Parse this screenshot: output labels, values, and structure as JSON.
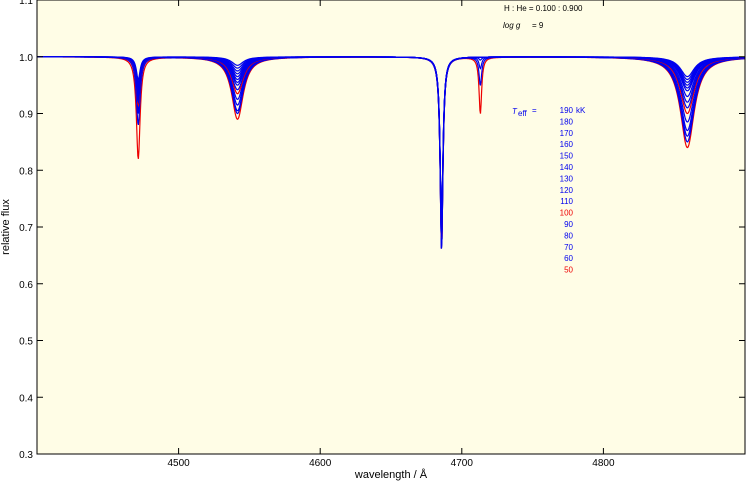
{
  "chart_data": {
    "type": "line",
    "xlabel": "wavelength / Å",
    "ylabel": "relative flux",
    "xlim": [
      4400,
      4900
    ],
    "ylim": [
      0.3,
      1.1
    ],
    "xticks": [
      4500,
      4600,
      4700,
      4800
    ],
    "yticks": [
      0.3,
      0.4,
      0.5,
      0.6,
      0.7,
      0.8,
      0.9,
      1.0,
      1.1
    ],
    "grid": false,
    "background": "#fffde6",
    "annotations": {
      "composition": "H : He = 0.100 : 0.900",
      "gravity_label": "log g",
      "gravity_value": "= 9"
    },
    "legend": {
      "placement": "right",
      "symbol_main": "T",
      "symbol_sub": "eff",
      "equals": "=",
      "unit": "kK"
    },
    "lines": [
      {
        "center": 4471.5,
        "width": 1.6
      },
      {
        "center": 4541.6,
        "width": 5.0
      },
      {
        "center": 4685.7,
        "width": 1.2
      },
      {
        "center": 4713.1,
        "width": 1.1
      },
      {
        "center": 4859.3,
        "width": 6.0
      }
    ],
    "series": [
      {
        "name": "190",
        "color": "#0000ee",
        "depths": [
          0.04,
          0.015,
          0.32,
          0.0,
          0.035
        ]
      },
      {
        "name": "180",
        "color": "#0000ee",
        "depths": [
          0.045,
          0.02,
          0.31,
          0.0,
          0.04
        ]
      },
      {
        "name": "170",
        "color": "#0000ee",
        "depths": [
          0.05,
          0.025,
          0.3,
          0.0,
          0.045
        ]
      },
      {
        "name": "160",
        "color": "#0000ee",
        "depths": [
          0.055,
          0.03,
          0.3,
          0.0,
          0.05
        ]
      },
      {
        "name": "150",
        "color": "#0000ee",
        "depths": [
          0.06,
          0.035,
          0.3,
          0.0,
          0.055
        ]
      },
      {
        "name": "140",
        "color": "#0000ee",
        "depths": [
          0.065,
          0.04,
          0.3,
          0.0,
          0.06
        ]
      },
      {
        "name": "130",
        "color": "#0000ee",
        "depths": [
          0.07,
          0.045,
          0.3,
          0.0,
          0.07
        ]
      },
      {
        "name": "120",
        "color": "#0000ee",
        "depths": [
          0.075,
          0.05,
          0.31,
          0.0,
          0.08
        ]
      },
      {
        "name": "110",
        "color": "#0000ee",
        "depths": [
          0.08,
          0.058,
          0.31,
          0.0,
          0.09
        ]
      },
      {
        "name": "100",
        "color": "#ee0000",
        "depths": [
          0.085,
          0.065,
          0.32,
          0.0,
          0.1
        ]
      },
      {
        "name": "90",
        "color": "#0000ee",
        "depths": [
          0.09,
          0.075,
          0.33,
          0.0,
          0.115
        ]
      },
      {
        "name": "80",
        "color": "#0000ee",
        "depths": [
          0.095,
          0.085,
          0.34,
          0.005,
          0.13
        ]
      },
      {
        "name": "70",
        "color": "#0000ee",
        "depths": [
          0.1,
          0.095,
          0.34,
          0.02,
          0.14
        ]
      },
      {
        "name": "60",
        "color": "#0000ee",
        "depths": [
          0.12,
          0.1,
          0.34,
          0.05,
          0.15
        ]
      },
      {
        "name": "50",
        "color": "#ee0000",
        "depths": [
          0.18,
          0.11,
          0.34,
          0.1,
          0.16
        ]
      }
    ]
  }
}
